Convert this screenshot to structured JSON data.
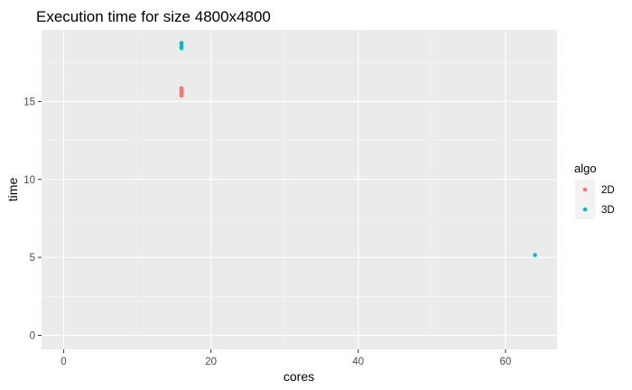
{
  "chart_data": {
    "type": "scatter",
    "title": "Execution time for size 4800x4800",
    "xlabel": "cores",
    "ylabel": "time",
    "xlim": [
      -3,
      67
    ],
    "ylim": [
      -0.9,
      19.6
    ],
    "x_major_ticks": [
      0,
      20,
      40,
      60
    ],
    "x_minor_ticks": [
      10,
      30,
      50
    ],
    "y_major_ticks": [
      0,
      5,
      10,
      15
    ],
    "y_minor_ticks": [
      2.5,
      7.5,
      12.5,
      17.5
    ],
    "x_tick_labels": [
      "0",
      "20",
      "40",
      "60"
    ],
    "y_tick_labels": [
      "0",
      "5",
      "10",
      "15"
    ],
    "grid": true,
    "legend": {
      "title": "algo",
      "position": "right",
      "entries": [
        "2D",
        "3D"
      ]
    },
    "series": [
      {
        "name": "2D",
        "color": "#F8766D",
        "x": [
          16,
          16,
          16,
          16,
          16,
          16
        ],
        "y": [
          15.85,
          15.72,
          15.62,
          15.55,
          15.45,
          15.38
        ]
      },
      {
        "name": "3D",
        "color": "#00BFC4",
        "x": [
          16,
          16,
          16,
          16,
          64
        ],
        "y": [
          18.75,
          18.65,
          18.5,
          18.42,
          5.15
        ]
      }
    ]
  }
}
